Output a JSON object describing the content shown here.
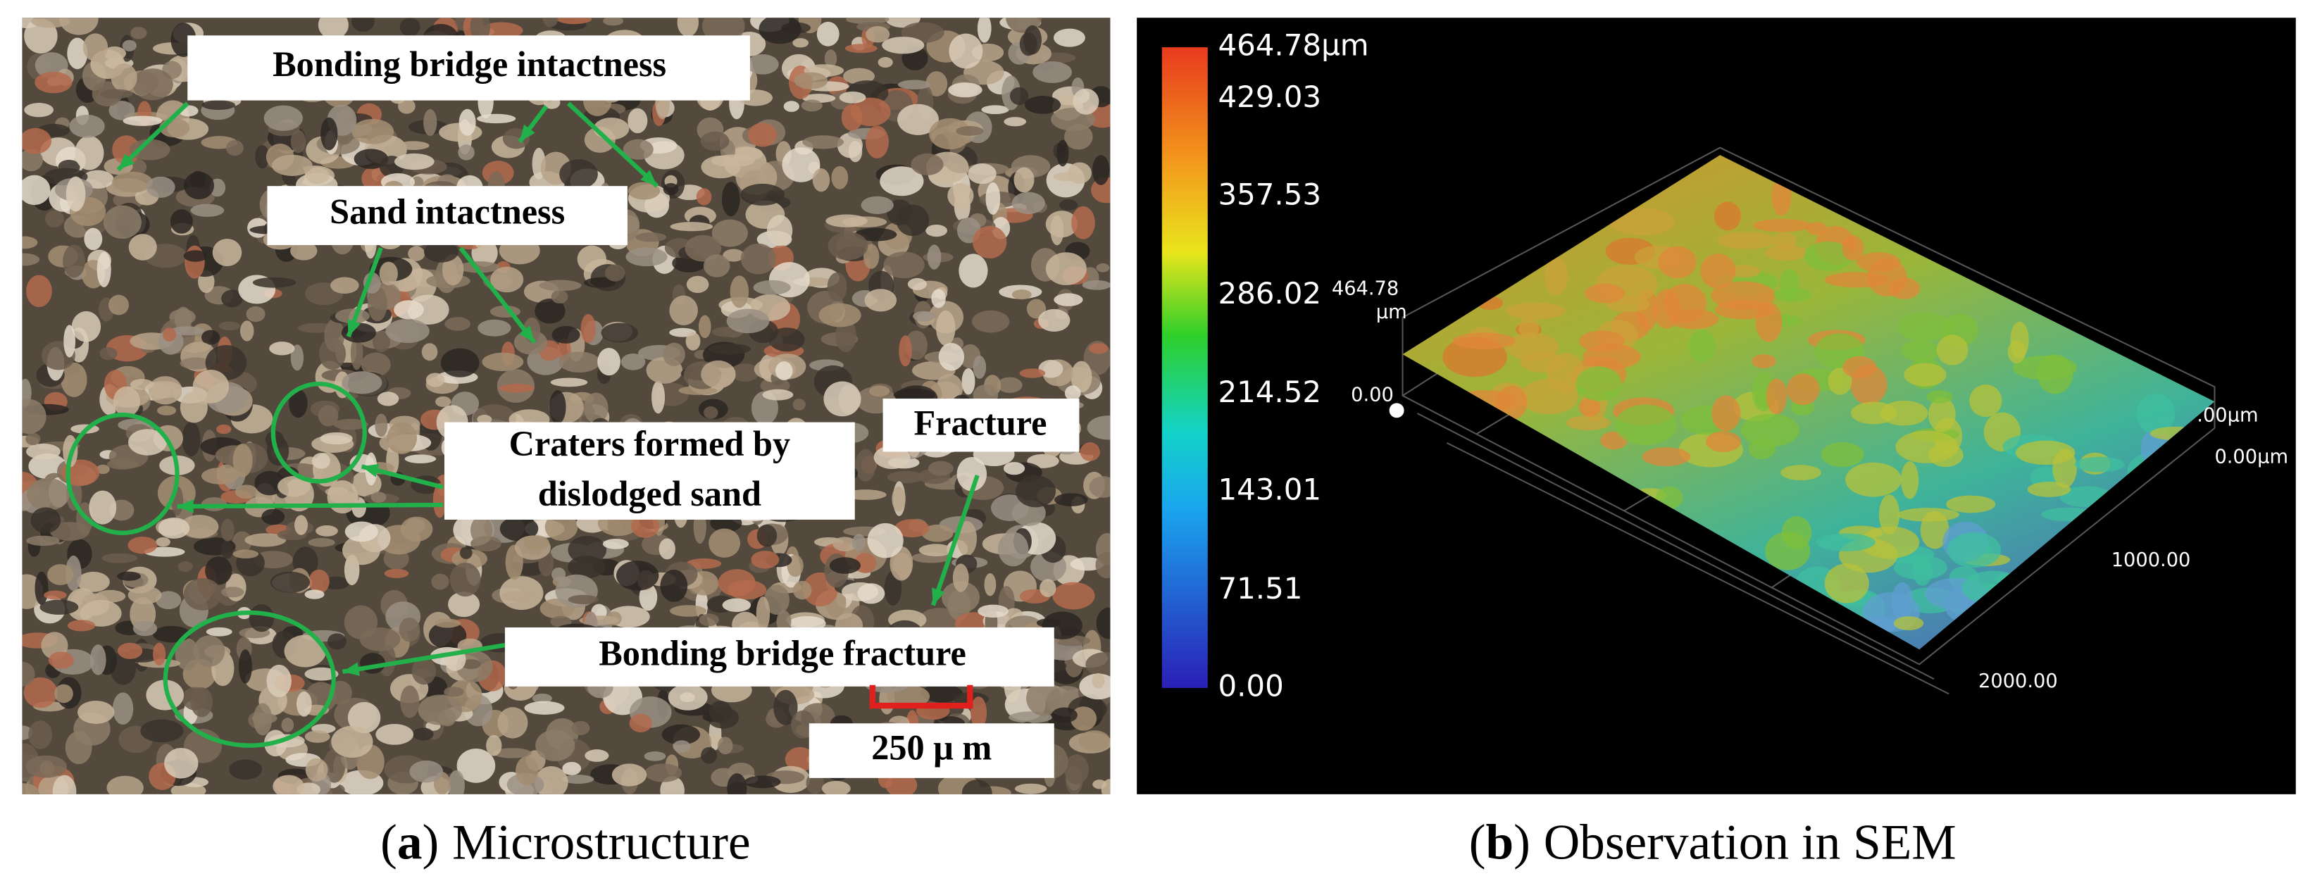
{
  "panels": [
    {
      "annotations": [
        "Bonding bridge intactness",
        "Sand intactness",
        "Craters formed by",
        "dislodged sand",
        "Fracture",
        "Bonding bridge fracture"
      ],
      "scale_bar": "250 μ m",
      "caption": {
        "open": "(",
        "letter": "a",
        "close": ")",
        "text": "Microstructure"
      }
    },
    {
      "colorbar_ticks": [
        "464.78µm",
        "429.03",
        "357.53",
        "286.02",
        "214.52",
        "143.01",
        "71.51",
        "0.00"
      ],
      "axis_labels": [
        "464.78",
        "µm",
        "0.00",
        ".00µm",
        "0.00µm",
        "1000.00",
        "2000.00"
      ],
      "caption": {
        "open": "(",
        "letter": "b",
        "close": ")",
        "text": "Observation in SEM"
      }
    }
  ]
}
